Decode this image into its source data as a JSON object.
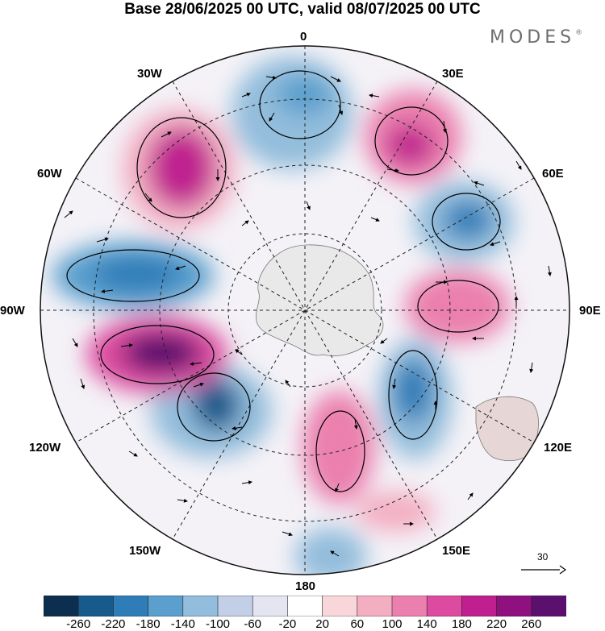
{
  "title": "Base 28/06/2025 00 UTC, valid 08/07/2025 00 UTC",
  "brand": {
    "name": "MODES",
    "mark": "®"
  },
  "meridian_labels": {
    "lon_0": "0",
    "lon_30e": "30E",
    "lon_60e": "60E",
    "lon_90e": "90E",
    "lon_120e": "120E",
    "lon_150e": "150E",
    "lon_180": "180",
    "lon_150w": "150W",
    "lon_120w": "120W",
    "lon_90w": "90W",
    "lon_60w": "60W",
    "lon_30w": "30W"
  },
  "reference_vector": {
    "label": "30"
  },
  "colorbar": {
    "ticks": [
      "-260",
      "-220",
      "-180",
      "-140",
      "-100",
      "-60",
      "-20",
      "20",
      "60",
      "100",
      "140",
      "180",
      "220",
      "260"
    ],
    "colors": [
      "#0d2f4f",
      "#175a8c",
      "#2f7db8",
      "#5a9fcd",
      "#93bddc",
      "#c2cfe6",
      "#e5e4f1",
      "#ffffff",
      "#f9d6d9",
      "#f3aec2",
      "#eb7fae",
      "#dc4b9f",
      "#c0208f",
      "#8f117f",
      "#5c106d"
    ]
  },
  "anomaly_centers": [
    {
      "name": "pos-30w",
      "value": 230
    },
    {
      "name": "neg-0",
      "value": -160
    },
    {
      "name": "pos-30e",
      "value": 220
    },
    {
      "name": "neg-60e",
      "value": -190
    },
    {
      "name": "pos-90e",
      "value": 170
    },
    {
      "name": "neg-120e",
      "value": -210
    },
    {
      "name": "pos-160e",
      "value": 170
    },
    {
      "name": "neg-140w",
      "value": -230
    },
    {
      "name": "pos-105w",
      "value": 280
    },
    {
      "name": "neg-80w",
      "value": -190
    }
  ]
}
